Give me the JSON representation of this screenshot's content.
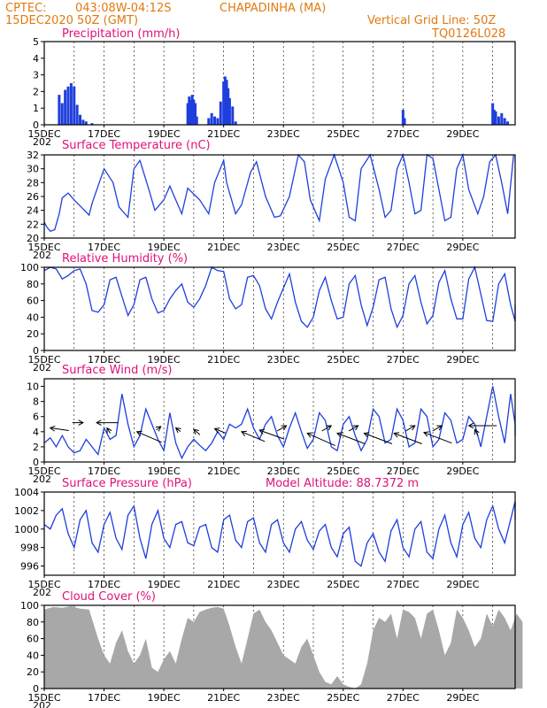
{
  "header": {
    "line1_left": "CPTEC:",
    "line1_coords": "043:08W-04:12S",
    "line1_station": "CHAPADINHA (MA)",
    "line2_left": "15DEC2020 50Z (GMT)",
    "line2_right": "Vertical Grid Line: 50Z",
    "line3_right": "TQ0126L028"
  },
  "model_altitude": "Model Altitude: 88.7372 m",
  "x_tick_labels": [
    "15DEC",
    "17DEC",
    "19DEC",
    "21DEC",
    "23DEC",
    "25DEC",
    "27DEC",
    "29DEC"
  ],
  "x_year_fragment": "202",
  "colors": {
    "header": "#e07a10",
    "title": "#e0107a",
    "line": "#1f3fdc",
    "bar": "#1f3fdc",
    "cloud": "#a8a8a8"
  },
  "chart_data": [
    {
      "type": "bar",
      "title": "Precipitation (mm/h)",
      "ylim": [
        0,
        5
      ],
      "yticks": [
        0,
        1,
        2,
        3,
        4,
        5
      ],
      "x": [
        0.5,
        0.6,
        0.7,
        0.8,
        0.9,
        1.0,
        1.1,
        1.2,
        1.3,
        1.4,
        1.6,
        4.8,
        4.85,
        4.9,
        4.95,
        5.0,
        5.05,
        5.1,
        5.5,
        5.6,
        5.7,
        5.8,
        5.9,
        6.0,
        6.05,
        6.1,
        6.15,
        6.2,
        6.3,
        6.4,
        12.0,
        12.05,
        15.0,
        15.05,
        15.1,
        15.2,
        15.3,
        15.4,
        15.5
      ],
      "values": [
        1.8,
        1.3,
        2.1,
        2.3,
        2.5,
        2.3,
        1.2,
        0.6,
        0.3,
        0.2,
        0.1,
        1.3,
        1.7,
        1.5,
        1.8,
        1.5,
        1.3,
        0.5,
        0.4,
        0.7,
        0.5,
        0.4,
        1.4,
        2.6,
        2.9,
        2.7,
        2.2,
        1.6,
        1.1,
        0.2,
        0.9,
        0.4,
        1.3,
        0.9,
        0.8,
        0.5,
        0.7,
        0.4,
        0.2
      ]
    },
    {
      "type": "line",
      "title": "Surface Temperature (nC)",
      "ylim": [
        20,
        32
      ],
      "yticks": [
        20,
        22,
        24,
        26,
        28,
        30,
        32
      ],
      "x": [
        0,
        0.1,
        0.2,
        0.35,
        0.5,
        0.6,
        0.8,
        1.0,
        1.3,
        1.5,
        1.6,
        2.0,
        2.3,
        2.5,
        2.8,
        3.0,
        3.2,
        3.5,
        3.7,
        4.0,
        4.2,
        4.4,
        4.6,
        4.8,
        5.2,
        5.5,
        5.7,
        6.0,
        6.1,
        6.4,
        6.6,
        6.9,
        7.1,
        7.4,
        7.7,
        7.9,
        8.2,
        8.5,
        8.7,
        8.9,
        9.2,
        9.4,
        9.7,
        10.0,
        10.2,
        10.4,
        10.6,
        10.9,
        11.2,
        11.4,
        11.6,
        11.8,
        12.0,
        12.2,
        12.4,
        12.6,
        12.8,
        13.0,
        13.2,
        13.4,
        13.6,
        13.8,
        14.0,
        14.2,
        14.5,
        14.7,
        14.9,
        15.1,
        15.3,
        15.5,
        15.7
      ],
      "values": [
        22.3,
        21.5,
        21.0,
        21.2,
        23.5,
        25.8,
        26.5,
        25.5,
        24.2,
        23.3,
        25.0,
        30.0,
        28.0,
        24.5,
        23.0,
        30.0,
        31.2,
        27.0,
        24.0,
        25.5,
        27.5,
        25.5,
        23.5,
        27.2,
        25.5,
        23.5,
        28.0,
        31.2,
        28.0,
        23.5,
        24.8,
        29.5,
        31.0,
        26.0,
        23.0,
        23.2,
        26.0,
        32.0,
        31.0,
        25.5,
        22.5,
        28.5,
        32.0,
        28.0,
        23.0,
        22.5,
        30.0,
        32.0,
        27.0,
        23.0,
        24.0,
        30.0,
        32.0,
        28.0,
        23.5,
        24.0,
        32.0,
        31.5,
        27.0,
        22.5,
        23.0,
        30.0,
        32.0,
        27.0,
        23.5,
        26.0,
        31.0,
        32.0,
        28.0,
        23.5,
        32.0
      ]
    },
    {
      "type": "line",
      "title": "Relative Humidity (%)",
      "ylim": [
        0,
        100
      ],
      "yticks": [
        0,
        20,
        40,
        60,
        80,
        100
      ],
      "x": [
        0,
        0.2,
        0.4,
        0.6,
        0.8,
        1.0,
        1.2,
        1.4,
        1.6,
        1.8,
        2.0,
        2.2,
        2.4,
        2.6,
        2.8,
        3.0,
        3.2,
        3.4,
        3.6,
        3.8,
        4.0,
        4.2,
        4.4,
        4.6,
        4.8,
        5.0,
        5.2,
        5.4,
        5.6,
        5.8,
        6.0,
        6.2,
        6.4,
        6.6,
        6.8,
        7.0,
        7.2,
        7.4,
        7.6,
        7.8,
        8.0,
        8.2,
        8.4,
        8.6,
        8.8,
        9.0,
        9.2,
        9.4,
        9.6,
        9.8,
        10.0,
        10.2,
        10.4,
        10.6,
        10.8,
        11.0,
        11.2,
        11.4,
        11.6,
        11.8,
        12.0,
        12.2,
        12.4,
        12.6,
        12.8,
        13.0,
        13.2,
        13.4,
        13.6,
        13.8,
        14.0,
        14.2,
        14.4,
        14.6,
        14.8,
        15.0,
        15.2,
        15.4,
        15.6,
        15.8,
        16.0
      ],
      "values": [
        96,
        100,
        98,
        86,
        90,
        96,
        98,
        80,
        48,
        46,
        55,
        85,
        88,
        65,
        42,
        55,
        85,
        88,
        62,
        45,
        48,
        62,
        72,
        80,
        58,
        52,
        62,
        78,
        100,
        96,
        95,
        62,
        50,
        55,
        88,
        90,
        78,
        50,
        38,
        58,
        75,
        92,
        58,
        35,
        28,
        40,
        72,
        88,
        60,
        38,
        40,
        80,
        90,
        55,
        30,
        52,
        85,
        88,
        50,
        28,
        42,
        80,
        90,
        58,
        32,
        42,
        82,
        96,
        62,
        38,
        38,
        86,
        100,
        68,
        36,
        35,
        80,
        92,
        55,
        35,
        55
      ]
    },
    {
      "type": "line",
      "title": "Surface Wind (m/s)",
      "ylim": [
        0,
        11
      ],
      "yticks": [
        0,
        2,
        4,
        6,
        8,
        10
      ],
      "x": [
        0,
        0.2,
        0.4,
        0.6,
        0.8,
        1.0,
        1.2,
        1.4,
        1.6,
        1.8,
        2.0,
        2.2,
        2.4,
        2.6,
        2.8,
        3.0,
        3.2,
        3.4,
        3.6,
        3.8,
        4.0,
        4.2,
        4.4,
        4.6,
        4.8,
        5.0,
        5.2,
        5.4,
        5.6,
        5.8,
        6.0,
        6.2,
        6.4,
        6.6,
        6.8,
        7.0,
        7.2,
        7.4,
        7.6,
        7.8,
        8.0,
        8.2,
        8.4,
        8.6,
        8.8,
        9.0,
        9.2,
        9.4,
        9.6,
        9.8,
        10.0,
        10.2,
        10.4,
        10.6,
        10.8,
        11.0,
        11.2,
        11.4,
        11.6,
        11.8,
        12.0,
        12.2,
        12.4,
        12.6,
        12.8,
        13.0,
        13.2,
        13.4,
        13.6,
        13.8,
        14.0,
        14.2,
        14.4,
        14.6,
        14.8,
        15.0,
        15.2,
        15.4,
        15.6,
        15.8,
        16.0
      ],
      "values": [
        2.5,
        3.2,
        2.0,
        3.5,
        2.0,
        1.2,
        1.5,
        3.0,
        2.0,
        1.0,
        4.5,
        3.0,
        3.5,
        9.0,
        5.0,
        2.0,
        3.5,
        7.0,
        5.0,
        3.0,
        1.5,
        6.5,
        2.5,
        0.5,
        2.0,
        3.0,
        2.2,
        1.5,
        2.5,
        4.0,
        3.0,
        5.0,
        4.5,
        5.0,
        7.0,
        4.5,
        3.0,
        5.0,
        6.0,
        3.5,
        2.0,
        4.5,
        6.5,
        4.0,
        1.8,
        3.0,
        6.5,
        5.5,
        2.0,
        1.5,
        5.0,
        6.0,
        3.5,
        1.5,
        3.0,
        7.0,
        6.0,
        2.5,
        3.0,
        7.0,
        5.5,
        2.0,
        2.5,
        7.0,
        6.0,
        2.0,
        3.0,
        6.5,
        5.5,
        2.5,
        3.0,
        6.0,
        5.0,
        2.0,
        6.0,
        10.0,
        6.0,
        2.5,
        9.0,
        5.0,
        3.5
      ],
      "vectors": [
        {
          "x": 0.2,
          "y": 4.5,
          "u": 0.6,
          "v": 0.15
        },
        {
          "x": 1.3,
          "y": 5.2,
          "u": -0.35,
          "v": 0.0
        },
        {
          "x": 1.75,
          "y": 5.2,
          "u": 0.7,
          "v": 0.0
        },
        {
          "x": 2.1,
          "y": 4.5,
          "u": 0.1,
          "v": 0.3
        },
        {
          "x": 3.1,
          "y": 4.0,
          "u": 0.8,
          "v": 0.6
        },
        {
          "x": 3.9,
          "y": 4.7,
          "u": -0.15,
          "v": 0.2
        },
        {
          "x": 4.4,
          "y": 4.5,
          "u": 0.15,
          "v": 0.2
        },
        {
          "x": 5.0,
          "y": 4.3,
          "u": 0.2,
          "v": 0.3
        },
        {
          "x": 5.7,
          "y": 4.4,
          "u": 0.35,
          "v": 0.25
        },
        {
          "x": 6.6,
          "y": 4.0,
          "u": 0.75,
          "v": 0.55
        },
        {
          "x": 7.2,
          "y": 4.2,
          "u": 0.8,
          "v": 0.5
        },
        {
          "x": 8.1,
          "y": 4.8,
          "u": -0.3,
          "v": 0.3
        },
        {
          "x": 8.8,
          "y": 3.8,
          "u": 0.9,
          "v": 0.7
        },
        {
          "x": 9.6,
          "y": 4.8,
          "u": -0.3,
          "v": 0.3
        },
        {
          "x": 9.8,
          "y": 3.8,
          "u": 0.9,
          "v": 0.6
        },
        {
          "x": 10.5,
          "y": 4.8,
          "u": -0.3,
          "v": 0.3
        },
        {
          "x": 10.7,
          "y": 3.8,
          "u": 0.9,
          "v": 0.6
        },
        {
          "x": 11.7,
          "y": 3.8,
          "u": 0.9,
          "v": 0.6
        },
        {
          "x": 12.4,
          "y": 4.8,
          "u": -0.3,
          "v": 0.3
        },
        {
          "x": 12.7,
          "y": 3.9,
          "u": 0.9,
          "v": 0.6
        },
        {
          "x": 13.3,
          "y": 4.8,
          "u": -0.3,
          "v": 0.3
        },
        {
          "x": 14.2,
          "y": 4.8,
          "u": 0.9,
          "v": 0.0
        },
        {
          "x": 14.4,
          "y": 4.3,
          "u": 0.1,
          "v": 0.35
        }
      ]
    },
    {
      "type": "line",
      "title": "Surface Pressure (hPa)",
      "ylim": [
        995,
        1004
      ],
      "yticks": [
        996,
        998,
        1000,
        1002,
        1004
      ],
      "x": [
        0,
        0.2,
        0.4,
        0.6,
        0.8,
        1.0,
        1.2,
        1.4,
        1.6,
        1.8,
        2.0,
        2.2,
        2.4,
        2.6,
        2.8,
        3.0,
        3.2,
        3.4,
        3.6,
        3.8,
        4.0,
        4.2,
        4.4,
        4.6,
        4.8,
        5.0,
        5.2,
        5.4,
        5.6,
        5.8,
        6.0,
        6.2,
        6.4,
        6.6,
        6.8,
        7.0,
        7.2,
        7.4,
        7.6,
        7.8,
        8.0,
        8.2,
        8.4,
        8.6,
        8.8,
        9.0,
        9.2,
        9.4,
        9.6,
        9.8,
        10.0,
        10.2,
        10.4,
        10.6,
        10.8,
        11.0,
        11.2,
        11.4,
        11.6,
        11.8,
        12.0,
        12.2,
        12.4,
        12.6,
        12.8,
        13.0,
        13.2,
        13.4,
        13.6,
        13.8,
        14.0,
        14.2,
        14.4,
        14.6,
        14.8,
        15.0,
        15.2,
        15.4,
        15.6,
        15.8,
        16.0
      ],
      "values": [
        1000.5,
        1000.0,
        1001.5,
        1002.2,
        999.5,
        998.0,
        1001.0,
        1002.0,
        998.5,
        997.5,
        1000.5,
        1001.8,
        999.0,
        997.8,
        1001.5,
        1002.5,
        999.0,
        996.8,
        1000.5,
        1002.0,
        999.0,
        998.0,
        1000.5,
        1000.8,
        998.5,
        998.2,
        1000.2,
        1000.5,
        998.0,
        997.5,
        1001.0,
        1001.5,
        998.8,
        998.0,
        1000.8,
        1001.2,
        998.5,
        997.5,
        1000.5,
        1001.0,
        998.5,
        997.5,
        1000.0,
        1000.8,
        998.8,
        997.8,
        999.8,
        1000.5,
        998.0,
        997.0,
        999.5,
        1000.2,
        996.5,
        996.0,
        998.5,
        999.5,
        997.5,
        996.5,
        999.8,
        1001.0,
        998.0,
        997.0,
        1000.0,
        1000.8,
        997.5,
        996.8,
        1000.0,
        1001.5,
        998.5,
        997.0,
        1000.5,
        1001.8,
        999.0,
        998.0,
        1001.0,
        1002.5,
        1000.0,
        998.5,
        1001.0,
        1003.0,
        1001.0
      ]
    },
    {
      "type": "area",
      "title": "Cloud Cover (%)",
      "ylim": [
        0,
        100
      ],
      "yticks": [
        0,
        20,
        40,
        60,
        80,
        100
      ],
      "x": [
        0,
        0.3,
        0.6,
        0.9,
        1.2,
        1.5,
        1.8,
        2.0,
        2.2,
        2.4,
        2.6,
        2.8,
        3.0,
        3.2,
        3.4,
        3.6,
        3.8,
        4.0,
        4.2,
        4.4,
        4.6,
        4.8,
        5.0,
        5.2,
        5.4,
        5.6,
        5.8,
        6.0,
        6.2,
        6.4,
        6.6,
        6.8,
        7.0,
        7.2,
        7.4,
        7.6,
        7.8,
        8.0,
        8.2,
        8.4,
        8.6,
        8.8,
        9.0,
        9.2,
        9.4,
        9.6,
        9.8,
        10.0,
        10.2,
        10.4,
        10.6,
        10.8,
        11.0,
        11.2,
        11.4,
        11.6,
        11.8,
        12.0,
        12.2,
        12.4,
        12.6,
        12.8,
        13.0,
        13.2,
        13.4,
        13.6,
        13.8,
        14.0,
        14.2,
        14.4,
        14.6,
        14.8,
        15.0,
        15.2,
        15.4,
        15.6,
        15.8,
        16.0
      ],
      "values": [
        95,
        98,
        97,
        99,
        96,
        95,
        60,
        40,
        30,
        55,
        70,
        45,
        30,
        40,
        60,
        25,
        20,
        35,
        45,
        30,
        60,
        85,
        80,
        92,
        95,
        97,
        98,
        96,
        75,
        50,
        30,
        60,
        90,
        95,
        80,
        70,
        55,
        40,
        35,
        30,
        50,
        60,
        40,
        20,
        8,
        5,
        15,
        5,
        2,
        0,
        5,
        30,
        70,
        85,
        80,
        90,
        60,
        95,
        92,
        85,
        60,
        90,
        95,
        70,
        40,
        55,
        95,
        85,
        70,
        50,
        60,
        90,
        75,
        95,
        85,
        70,
        90,
        80
      ]
    }
  ]
}
